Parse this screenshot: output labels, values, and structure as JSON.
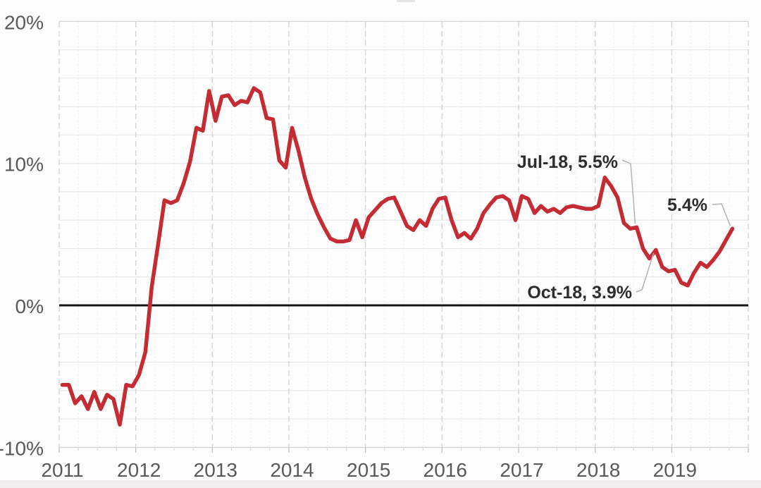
{
  "page": {
    "background_color": "#fdfdfd",
    "bottom_strip_color": "#f1ecee",
    "axis_text_color": "#58595b",
    "annotation_text_color": "#2d2d2d",
    "leader_line_color": "#b3b3b3"
  },
  "chart_data": {
    "type": "line",
    "title": "",
    "unit": "percent",
    "frequency": "monthly",
    "x_start": "2011-01",
    "x_end": "2019-10",
    "ylim": [
      -10,
      20
    ],
    "gridline_step_pct": 2,
    "grid_on": true,
    "line_color": "#c42b33",
    "zero_line_color": "#161616",
    "yticks": [
      {
        "value": 20,
        "label": "20%"
      },
      {
        "value": 10,
        "label": "10%"
      },
      {
        "value": 0,
        "label": "0%"
      },
      {
        "value": -10,
        "label": "-10%"
      }
    ],
    "xlabels": [
      "2011",
      "2012",
      "2013",
      "2014",
      "2015",
      "2016",
      "2017",
      "2018",
      "2019"
    ],
    "series": [
      {
        "name": "",
        "values": [
          -5.6,
          -5.6,
          -6.9,
          -6.4,
          -7.3,
          -6.1,
          -7.3,
          -6.3,
          -6.6,
          -8.4,
          -5.6,
          -5.7,
          -4.9,
          -3.3,
          1.3,
          4.3,
          7.4,
          7.2,
          7.4,
          8.6,
          10.1,
          12.5,
          12.3,
          15.1,
          13.0,
          14.7,
          14.8,
          14.1,
          14.4,
          14.3,
          15.3,
          15.0,
          13.2,
          13.1,
          10.2,
          9.7,
          12.5,
          10.9,
          9.0,
          7.5,
          6.4,
          5.5,
          4.7,
          4.5,
          4.5,
          4.6,
          6.0,
          4.8,
          6.2,
          6.7,
          7.2,
          7.5,
          7.6,
          6.6,
          5.6,
          5.3,
          6.0,
          5.6,
          6.8,
          7.5,
          7.6,
          6.0,
          4.8,
          5.1,
          4.7,
          5.4,
          6.5,
          7.1,
          7.6,
          7.7,
          7.4,
          6.0,
          7.7,
          7.5,
          6.5,
          7.0,
          6.6,
          6.8,
          6.5,
          6.9,
          7.0,
          6.9,
          6.8,
          6.8,
          7.0,
          9.0,
          8.4,
          7.6,
          5.8,
          5.4,
          5.5,
          4.0,
          3.3,
          3.9,
          2.7,
          2.4,
          2.5,
          1.6,
          1.4,
          2.3,
          3.0,
          2.7,
          3.2,
          3.8,
          4.6,
          5.4
        ]
      }
    ],
    "annotations": [
      {
        "label": "Jul-18, 5.5%",
        "month_index": 90,
        "value": 5.5
      },
      {
        "label": "Oct-18, 3.9%",
        "month_index": 93,
        "value": 3.9
      },
      {
        "label": "5.4%",
        "month_index": 105,
        "value": 5.4
      }
    ],
    "legend_position": "none"
  }
}
